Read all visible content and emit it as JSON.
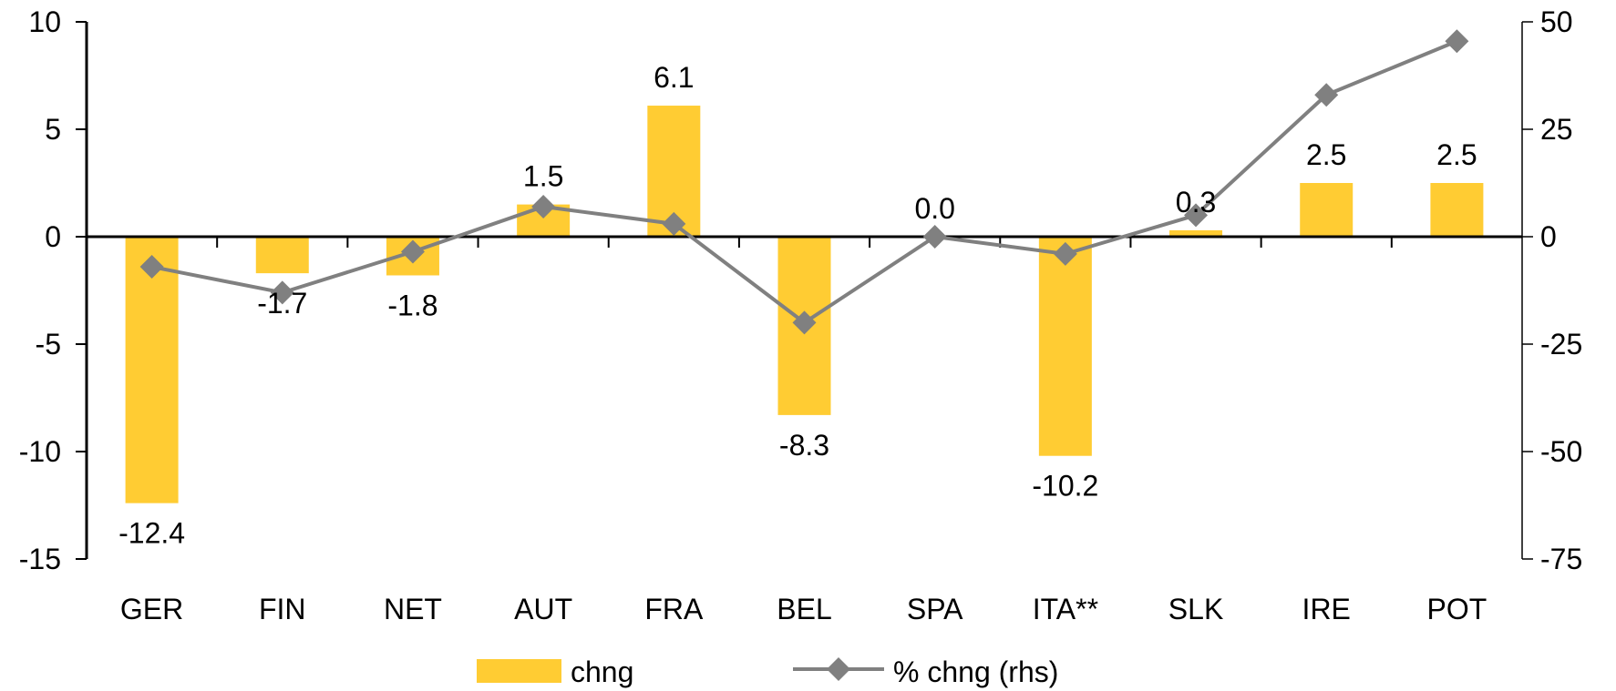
{
  "chart_data": {
    "type": "bar",
    "categories": [
      "GER",
      "FIN",
      "NET",
      "AUT",
      "FRA",
      "BEL",
      "SPA",
      "ITA**",
      "SLK",
      "IRE",
      "POT"
    ],
    "series": [
      {
        "name": "chng",
        "type": "bar",
        "axis": "left",
        "color": "#FFCC33",
        "values": [
          -12.4,
          -1.7,
          -1.8,
          1.5,
          6.1,
          -8.3,
          0.0,
          -10.2,
          0.3,
          2.5,
          2.5
        ],
        "labels": [
          "-12.4",
          "-1.7",
          "-1.8",
          "1.5",
          "6.1",
          "-8.3",
          "0.0",
          "-10.2",
          "0.3",
          "2.5",
          "2.5"
        ]
      },
      {
        "name": "% chng (rhs)",
        "type": "line",
        "axis": "right",
        "color": "#808080",
        "marker": "diamond",
        "values": [
          -7,
          -13,
          -3.5,
          7,
          3,
          -20,
          0,
          -4,
          5,
          33,
          45.5
        ]
      }
    ],
    "y_left": {
      "ylim": [
        -15,
        10
      ],
      "ticks": [
        10,
        5,
        0,
        -5,
        -10,
        -15
      ],
      "tick_labels": [
        "10",
        "5",
        "0",
        "-5",
        "-10",
        "-15"
      ]
    },
    "y_right": {
      "ylim": [
        -75,
        50
      ],
      "ticks": [
        50,
        25,
        0,
        -25,
        -50,
        -75
      ],
      "tick_labels": [
        "50",
        "25",
        "0",
        "-25",
        "-50",
        "-75"
      ]
    },
    "grid": false,
    "legend": {
      "position": "bottom",
      "entries": [
        "chng",
        "% chng (rhs)"
      ]
    }
  }
}
